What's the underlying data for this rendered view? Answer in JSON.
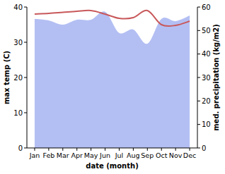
{
  "chart_data": {
    "type": "line",
    "xlabel": "date (month)",
    "ylabel": "max temp (C)",
    "y2label": "med. precipitation (kg/m2)",
    "categories": [
      "Jan",
      "Feb",
      "Mar",
      "Apr",
      "May",
      "Jun",
      "Jul",
      "Aug",
      "Sep",
      "Oct",
      "Nov",
      "Dec"
    ],
    "series": [
      {
        "type": "area",
        "axis": "y2",
        "color": "#b3bff3",
        "values": [
          55,
          54.3,
          52.5,
          54.6,
          54.6,
          58,
          49,
          50.4,
          44.4,
          55,
          54,
          56.4
        ]
      },
      {
        "type": "line",
        "color": "#c8585a",
        "values": [
          38,
          38.2,
          38.5,
          38.8,
          39,
          38,
          36.8,
          37,
          39,
          35,
          34.8,
          36
        ]
      }
    ],
    "ylim": [
      0,
      40
    ],
    "yticks": [
      0,
      10,
      20,
      30,
      40
    ],
    "y2lim": [
      0,
      60
    ],
    "y2ticks": [
      0,
      10,
      20,
      30,
      40,
      50,
      60
    ],
    "grid": false
  }
}
